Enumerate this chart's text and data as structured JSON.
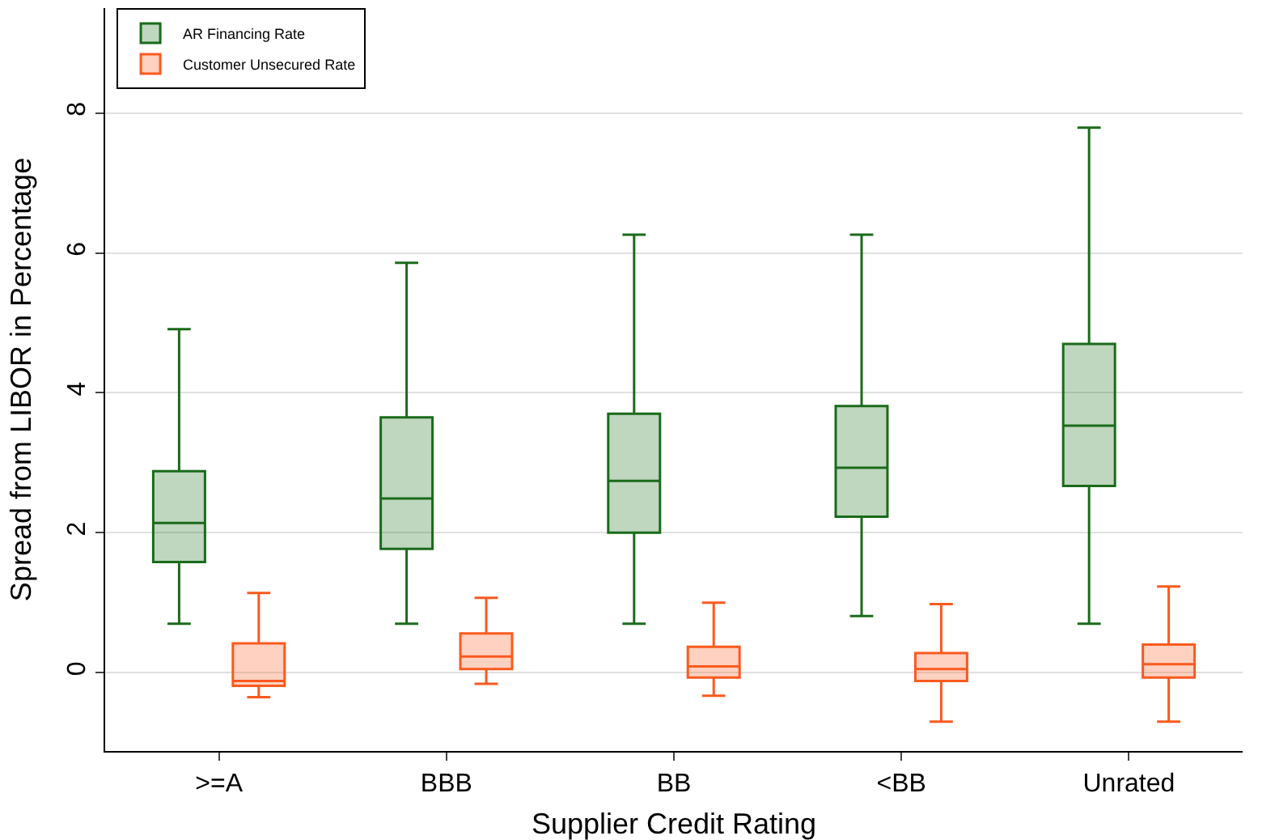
{
  "chart_data": {
    "type": "box",
    "xlabel": "Supplier Credit Rating",
    "ylabel": "Spread from LIBOR in Percentage",
    "categories": [
      ">=A",
      "BBB",
      "BB",
      "<BB",
      "Unrated"
    ],
    "ylim": [
      -1.12,
      9.5
    ],
    "yticks": [
      0,
      2,
      4,
      6,
      8
    ],
    "grid": "y",
    "legend": "top left",
    "series": [
      {
        "name": "AR Financing Rate",
        "color": "#1a6b1a",
        "boxes": [
          {
            "low": 0.7,
            "q1": 1.58,
            "median": 2.14,
            "q3": 2.88,
            "high": 4.91
          },
          {
            "low": 0.7,
            "q1": 1.77,
            "median": 2.49,
            "q3": 3.65,
            "high": 5.86
          },
          {
            "low": 0.7,
            "q1": 2.0,
            "median": 2.74,
            "q3": 3.7,
            "high": 6.26
          },
          {
            "low": 0.81,
            "q1": 2.23,
            "median": 2.93,
            "q3": 3.81,
            "high": 6.26
          },
          {
            "low": 0.7,
            "q1": 2.67,
            "median": 3.53,
            "q3": 4.7,
            "high": 7.79
          }
        ]
      },
      {
        "name": "Customer Unsecured Rate",
        "color": "#fa5a1e",
        "boxes": [
          {
            "low": -0.35,
            "q1": -0.19,
            "median": -0.12,
            "q3": 0.42,
            "high": 1.14
          },
          {
            "low": -0.16,
            "q1": 0.05,
            "median": 0.23,
            "q3": 0.56,
            "high": 1.07
          },
          {
            "low": -0.33,
            "q1": -0.07,
            "median": 0.09,
            "q3": 0.37,
            "high": 1.0
          },
          {
            "low": -0.7,
            "q1": -0.12,
            "median": 0.05,
            "q3": 0.28,
            "high": 0.98
          },
          {
            "low": -0.7,
            "q1": -0.07,
            "median": 0.12,
            "q3": 0.4,
            "high": 1.23
          }
        ]
      }
    ]
  }
}
